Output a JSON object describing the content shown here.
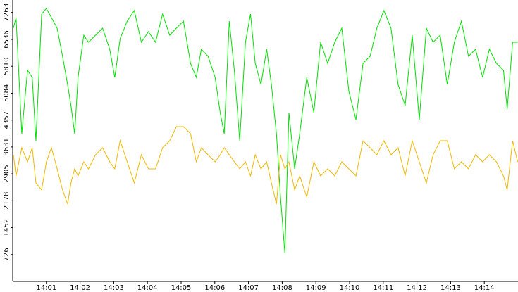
{
  "chart_data": {
    "type": "line",
    "x": [
      0.02,
      0.1,
      0.27,
      0.44,
      0.58,
      0.69,
      0.86,
      1.0,
      1.15,
      1.32,
      1.48,
      1.63,
      1.73,
      1.84,
      1.94,
      2.11,
      2.25,
      2.46,
      2.67,
      2.88,
      3.03,
      3.19,
      3.4,
      3.61,
      3.82,
      4.03,
      4.24,
      4.45,
      4.66,
      4.86,
      5.07,
      5.28,
      5.45,
      5.6,
      5.8,
      6.01,
      6.16,
      6.28,
      6.43,
      6.58,
      6.74,
      6.91,
      7.06,
      7.2,
      7.37,
      7.54,
      7.68,
      7.83,
      7.95,
      8.08,
      8.2,
      8.37,
      8.52,
      8.73,
      8.94,
      9.14,
      9.35,
      9.56,
      9.77,
      9.98,
      10.19,
      10.4,
      10.61,
      10.81,
      11.02,
      11.23,
      11.44,
      11.65,
      11.86,
      12.07,
      12.28,
      12.48,
      12.69,
      12.9,
      13.11,
      13.32,
      13.53,
      13.74,
      13.95,
      14.15,
      14.36,
      14.57,
      14.68,
      14.84,
      14.99
    ],
    "series": [
      {
        "color": "#00e000",
        "values": [
          6840,
          7125,
          3990,
          5700,
          5510,
          3800,
          7220,
          7370,
          7125,
          6840,
          6080,
          5320,
          4750,
          3990,
          5510,
          6650,
          6460,
          6650,
          6840,
          6270,
          5510,
          6555,
          7030,
          7315,
          6460,
          6745,
          6460,
          7220,
          6650,
          6840,
          7030,
          5890,
          5510,
          6270,
          6080,
          5510,
          4560,
          3990,
          7030,
          5700,
          3800,
          6460,
          7220,
          5890,
          5320,
          6270,
          5320,
          3990,
          2280,
          760,
          4560,
          3040,
          3990,
          5510,
          4560,
          6460,
          5890,
          6460,
          6840,
          5130,
          4370,
          5890,
          6080,
          6840,
          7315,
          6840,
          5320,
          4750,
          6650,
          4370,
          6840,
          6460,
          6650,
          5320,
          6460,
          7030,
          6080,
          6270,
          5510,
          6270,
          5890,
          5700,
          4655,
          6460,
          6460
        ]
      },
      {
        "color": "#f0b800",
        "values": [
          3420,
          2850,
          3610,
          3230,
          3610,
          2660,
          2470,
          3230,
          3610,
          3040,
          2470,
          2090,
          2660,
          3040,
          2850,
          3230,
          3040,
          3420,
          3610,
          3230,
          3040,
          3800,
          3230,
          2660,
          3420,
          3040,
          3040,
          3610,
          3800,
          4180,
          4180,
          3990,
          3230,
          3610,
          3420,
          3230,
          3420,
          3610,
          3420,
          3230,
          3040,
          3230,
          2850,
          3420,
          3040,
          3230,
          2660,
          2090,
          3420,
          3040,
          3230,
          2470,
          2850,
          2280,
          3230,
          2850,
          3040,
          2850,
          3230,
          3040,
          2850,
          3800,
          3610,
          3420,
          3800,
          3420,
          3610,
          2850,
          3800,
          3230,
          2660,
          3420,
          3800,
          3800,
          3040,
          3230,
          3040,
          3420,
          3230,
          3420,
          3230,
          2850,
          2470,
          3800,
          3230
        ]
      }
    ],
    "xlim": [
      0,
      15
    ],
    "ylim": [
      0,
      7600
    ],
    "xticks": [
      {
        "value": 1,
        "label": "14:01"
      },
      {
        "value": 2,
        "label": "14:02"
      },
      {
        "value": 3,
        "label": "14:03"
      },
      {
        "value": 4,
        "label": "14:04"
      },
      {
        "value": 5,
        "label": "14:05"
      },
      {
        "value": 6,
        "label": "14:06"
      },
      {
        "value": 7,
        "label": "14:07"
      },
      {
        "value": 8,
        "label": "14:08"
      },
      {
        "value": 9,
        "label": "14:09"
      },
      {
        "value": 10,
        "label": "14:10"
      },
      {
        "value": 11,
        "label": "14:11"
      },
      {
        "value": 12,
        "label": "14:12"
      },
      {
        "value": 13,
        "label": "14:13"
      },
      {
        "value": 14,
        "label": "14:14"
      }
    ],
    "yticks": [
      726,
      1452,
      2178,
      2905,
      3631,
      4357,
      5084,
      5810,
      6536,
      7263
    ]
  }
}
